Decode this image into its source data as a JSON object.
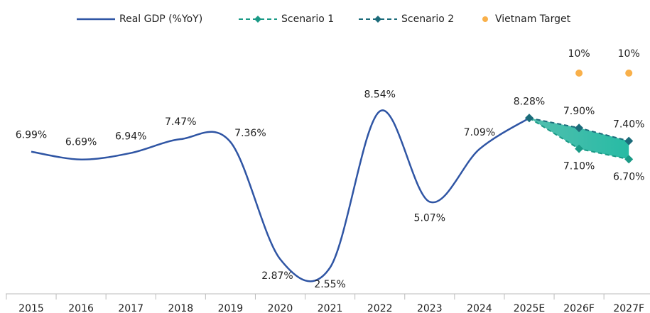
{
  "chart_data": {
    "type": "line",
    "categories": [
      "2015",
      "2016",
      "2017",
      "2018",
      "2019",
      "2020",
      "2021",
      "2022",
      "2023",
      "2024",
      "2025E",
      "2026F",
      "2027F"
    ],
    "series": [
      {
        "name": "Real GDP (%YoY)",
        "color": "#2f55a4",
        "style": "smooth",
        "values": [
          6.99,
          6.69,
          6.94,
          7.47,
          7.36,
          2.87,
          2.55,
          8.54,
          5.07,
          7.09,
          8.28,
          null,
          null
        ],
        "value_labels": [
          "6.99%",
          "6.69%",
          "6.94%",
          "7.47%",
          "7.36%",
          "2.87%",
          "2.55%",
          "8.54%",
          "5.07%",
          "7.09%",
          "8.28%",
          null,
          null
        ]
      },
      {
        "name": "Scenario 1",
        "color": "#1a9a86",
        "style": "dashed-diamond",
        "values": [
          null,
          null,
          null,
          null,
          null,
          null,
          null,
          null,
          null,
          null,
          8.28,
          7.1,
          6.7
        ],
        "value_labels": [
          null,
          null,
          null,
          null,
          null,
          null,
          null,
          null,
          null,
          null,
          null,
          "7.10%",
          "6.70%"
        ]
      },
      {
        "name": "Scenario 2",
        "color": "#1b6b7a",
        "style": "dashed-diamond",
        "values": [
          null,
          null,
          null,
          null,
          null,
          null,
          null,
          null,
          null,
          null,
          8.28,
          7.9,
          7.4
        ],
        "value_labels": [
          null,
          null,
          null,
          null,
          null,
          null,
          null,
          null,
          null,
          null,
          null,
          "7.90%",
          "7.40%"
        ]
      },
      {
        "name": "Vietnam Target",
        "color": "#f9b04a",
        "style": "dot",
        "values": [
          null,
          null,
          null,
          null,
          null,
          null,
          null,
          null,
          null,
          null,
          null,
          10,
          10
        ],
        "value_labels": [
          null,
          null,
          null,
          null,
          null,
          null,
          null,
          null,
          null,
          null,
          null,
          "10%",
          "10%"
        ]
      }
    ],
    "legend": "top"
  }
}
